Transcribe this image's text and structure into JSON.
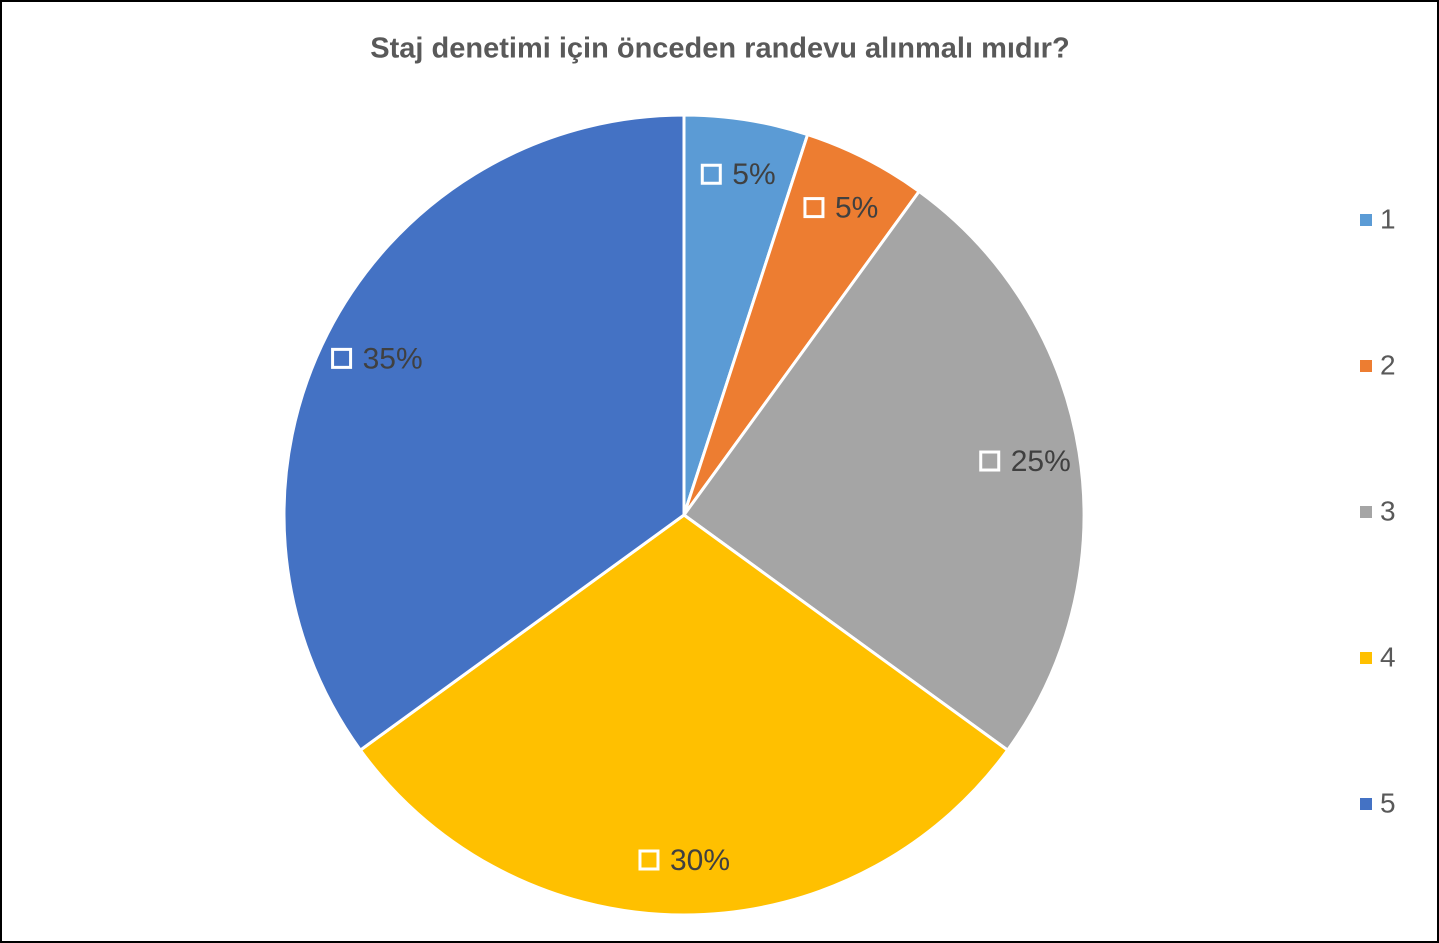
{
  "chart_data": {
    "type": "pie",
    "title": "Staj denetimi için önceden randevu alınmalı mıdır?",
    "categories": [
      "1",
      "2",
      "3",
      "4",
      "5"
    ],
    "values": [
      5,
      5,
      25,
      30,
      35
    ],
    "value_labels": [
      "5%",
      "5%",
      "25%",
      "30%",
      "35%"
    ],
    "colors": [
      "#5b9bd5",
      "#ed7d31",
      "#a5a5a5",
      "#ffc000",
      "#4472c4"
    ],
    "legend": "right"
  }
}
